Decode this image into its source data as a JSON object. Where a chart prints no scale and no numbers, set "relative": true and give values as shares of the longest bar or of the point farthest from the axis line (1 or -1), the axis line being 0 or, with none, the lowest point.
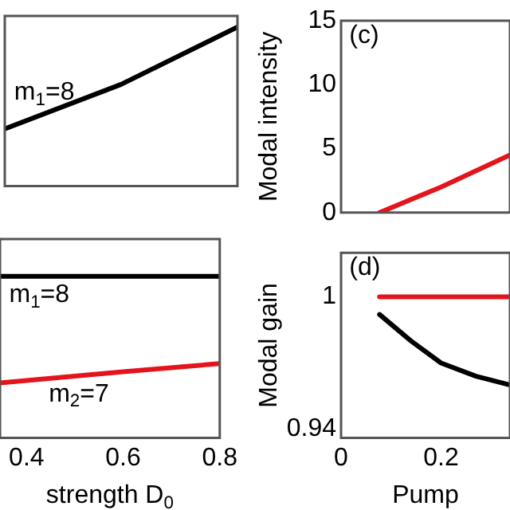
{
  "chart_data": [
    {
      "type": "line",
      "relative": true,
      "categories": [
        null,
        null,
        null
      ],
      "series": [
        {
          "color": "#000000",
          "values": [
            0.36,
            0.64,
            1
          ]
        }
      ],
      "annotations": [
        "m$_{1}$=8"
      ]
    },
    {
      "type": "line",
      "relative": true,
      "tick_labels": "x",
      "xlim": [
        0.345,
        0.8
      ],
      "xticks": [
        0.4,
        0.6,
        0.8
      ],
      "xlabel": "strength D$_{0}$",
      "series": [
        {
          "color": "#000000",
          "x": [
            0.345,
            0.8
          ],
          "values": [
            1,
            1
          ]
        },
        {
          "color": "#e3141c",
          "x": [
            0.345,
            0.6,
            0.8
          ],
          "values": [
            0.34,
            0.41,
            0.46
          ]
        }
      ],
      "annotations": [
        "m$_{1}$=8",
        "m$_{2}$=7"
      ]
    },
    {
      "type": "line",
      "tick_labels": "y",
      "xlim": [
        0,
        0.338
      ],
      "xticks": [
        0,
        0.2
      ],
      "ylim": [
        0,
        15
      ],
      "yticks": [
        0,
        5,
        10,
        15
      ],
      "ylabel": "Modal intensity",
      "series": [
        {
          "color": "#e3141c",
          "x": [
            0.077,
            0.2,
            0.338
          ],
          "values": [
            0,
            2.0,
            4.5
          ]
        }
      ],
      "annotations": [
        "(c)"
      ]
    },
    {
      "type": "line",
      "xlim": [
        0,
        0.338
      ],
      "xticks": [
        0,
        0.2
      ],
      "ylim": [
        0.936,
        1.02
      ],
      "yticks": [
        0.94,
        1
      ],
      "ylabel": "Modal gain",
      "xlabel": "Pump",
      "series": [
        {
          "color": "#e3141c",
          "x": [
            0.077,
            0.338
          ],
          "values": [
            1,
            1
          ]
        },
        {
          "color": "#000000",
          "x": [
            0.077,
            0.14,
            0.2,
            0.27,
            0.338
          ],
          "values": [
            0.992,
            0.98,
            0.97,
            0.964,
            0.96
          ]
        }
      ],
      "annotations": [
        "(d)"
      ]
    }
  ]
}
